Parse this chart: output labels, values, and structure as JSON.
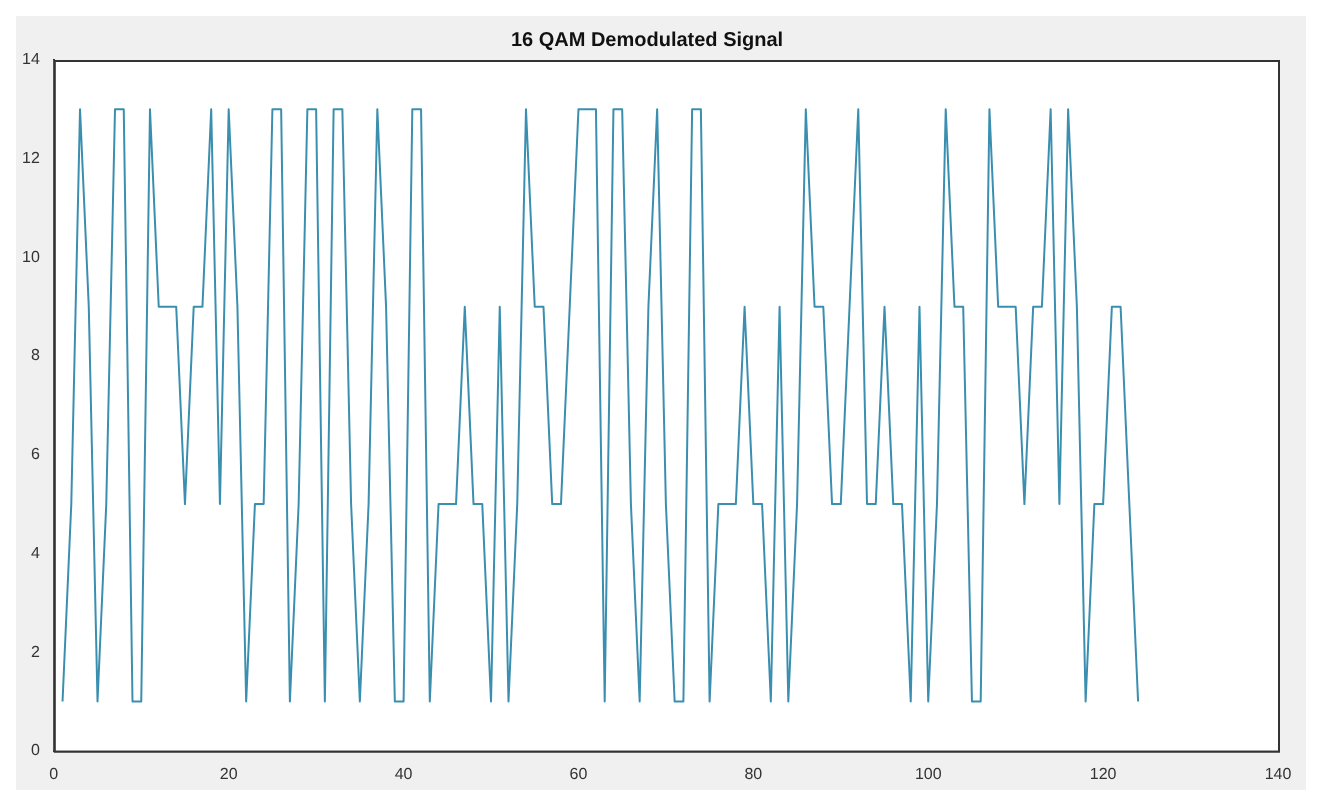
{
  "chart_data": {
    "type": "line",
    "title": "16 QAM Demodulated Signal",
    "x": [
      1,
      2,
      3,
      4,
      5,
      6,
      7,
      8,
      9,
      10,
      11,
      12,
      13,
      14,
      15,
      16,
      17,
      18,
      19,
      20,
      21,
      22,
      23,
      24,
      25,
      26,
      27,
      28,
      29,
      30,
      31,
      32,
      33,
      34,
      35,
      36,
      37,
      38,
      39,
      40,
      41,
      42,
      43,
      44,
      45,
      46,
      47,
      48,
      49,
      50,
      51,
      52,
      53,
      54,
      55,
      56,
      57,
      58,
      59,
      60,
      61,
      62,
      63,
      64,
      65,
      66,
      67,
      68,
      69,
      70,
      71,
      72,
      73,
      74,
      75,
      76,
      77,
      78,
      79,
      80,
      81,
      82,
      83,
      84,
      85,
      86,
      87,
      88,
      89,
      90,
      91,
      92,
      93,
      94,
      95,
      96,
      97,
      98,
      99,
      100,
      101,
      102,
      103,
      104,
      105,
      106,
      107,
      108,
      109,
      110,
      111,
      112,
      113,
      114,
      115,
      116,
      117,
      118,
      119,
      120,
      121,
      122,
      123,
      124
    ],
    "series": [
      {
        "color": "#3a8fb0",
        "values": [
          1,
          5,
          13,
          9,
          1,
          5,
          13,
          13,
          1,
          1,
          13,
          9,
          9,
          9,
          5,
          9,
          9,
          13,
          5,
          13,
          9,
          1,
          5,
          5,
          13,
          13,
          1,
          5,
          13,
          13,
          1,
          13,
          13,
          5,
          1,
          5,
          13,
          9,
          1,
          1,
          13,
          13,
          1,
          5,
          5,
          5,
          9,
          5,
          5,
          1,
          9,
          1,
          5,
          13,
          9,
          9,
          5,
          5,
          9,
          13,
          13,
          13,
          1,
          13,
          13,
          5,
          1,
          9,
          13,
          5,
          1,
          1,
          13,
          13,
          1,
          5,
          5,
          5,
          9,
          5,
          5,
          1,
          9,
          1,
          5,
          13,
          9,
          9,
          5,
          5,
          9,
          13,
          5,
          5,
          9,
          5,
          5,
          1,
          9,
          1,
          5,
          13,
          9,
          9,
          1,
          1,
          13,
          9,
          9,
          9,
          5,
          9,
          9,
          13,
          5,
          13,
          9,
          1,
          5,
          5,
          9,
          9,
          5,
          1
        ]
      }
    ],
    "xlim": [
      0,
      140
    ],
    "xticks": [
      0,
      20,
      40,
      60,
      80,
      100,
      120,
      140
    ],
    "ylim": [
      0,
      14
    ],
    "yticks": [
      0,
      2,
      4,
      6,
      8,
      10,
      12,
      14
    ],
    "grid": false,
    "legend": false,
    "marker": "none",
    "line_style": "solid"
  }
}
